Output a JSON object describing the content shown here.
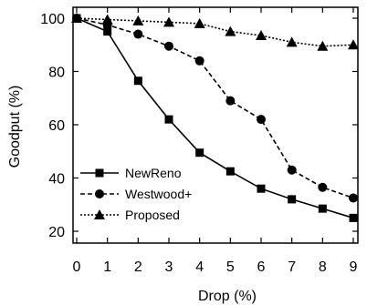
{
  "chart_data": {
    "type": "line",
    "title": "",
    "xlabel": "Drop (%)",
    "ylabel": "Goodput (%)",
    "xlim": [
      0,
      9
    ],
    "ylim": [
      20,
      100
    ],
    "xticks": [
      "0",
      "1",
      "2",
      "3",
      "4",
      "5",
      "6",
      "7",
      "8",
      "9"
    ],
    "yticks": [
      "20",
      "40",
      "60",
      "80",
      "100"
    ],
    "grid": false,
    "legend_position": "bottom-left",
    "x": [
      0,
      1,
      2,
      3,
      4,
      5,
      6,
      7,
      8,
      9
    ],
    "series": [
      {
        "name": "NewReno",
        "marker": "square",
        "line_style": "solid",
        "values": [
          100,
          95,
          76.5,
          62,
          49.5,
          42.5,
          36,
          32,
          28.5,
          25
        ]
      },
      {
        "name": "Westwood+",
        "marker": "circle",
        "line_style": "dashed",
        "values": [
          100,
          97.5,
          94,
          89.5,
          84,
          69,
          62,
          43,
          36.5,
          32.5
        ]
      },
      {
        "name": "Proposed",
        "marker": "triangle",
        "line_style": "dotted",
        "values": [
          100,
          99.5,
          99,
          98.5,
          98,
          95,
          93.5,
          91,
          89.5,
          90
        ]
      }
    ]
  }
}
